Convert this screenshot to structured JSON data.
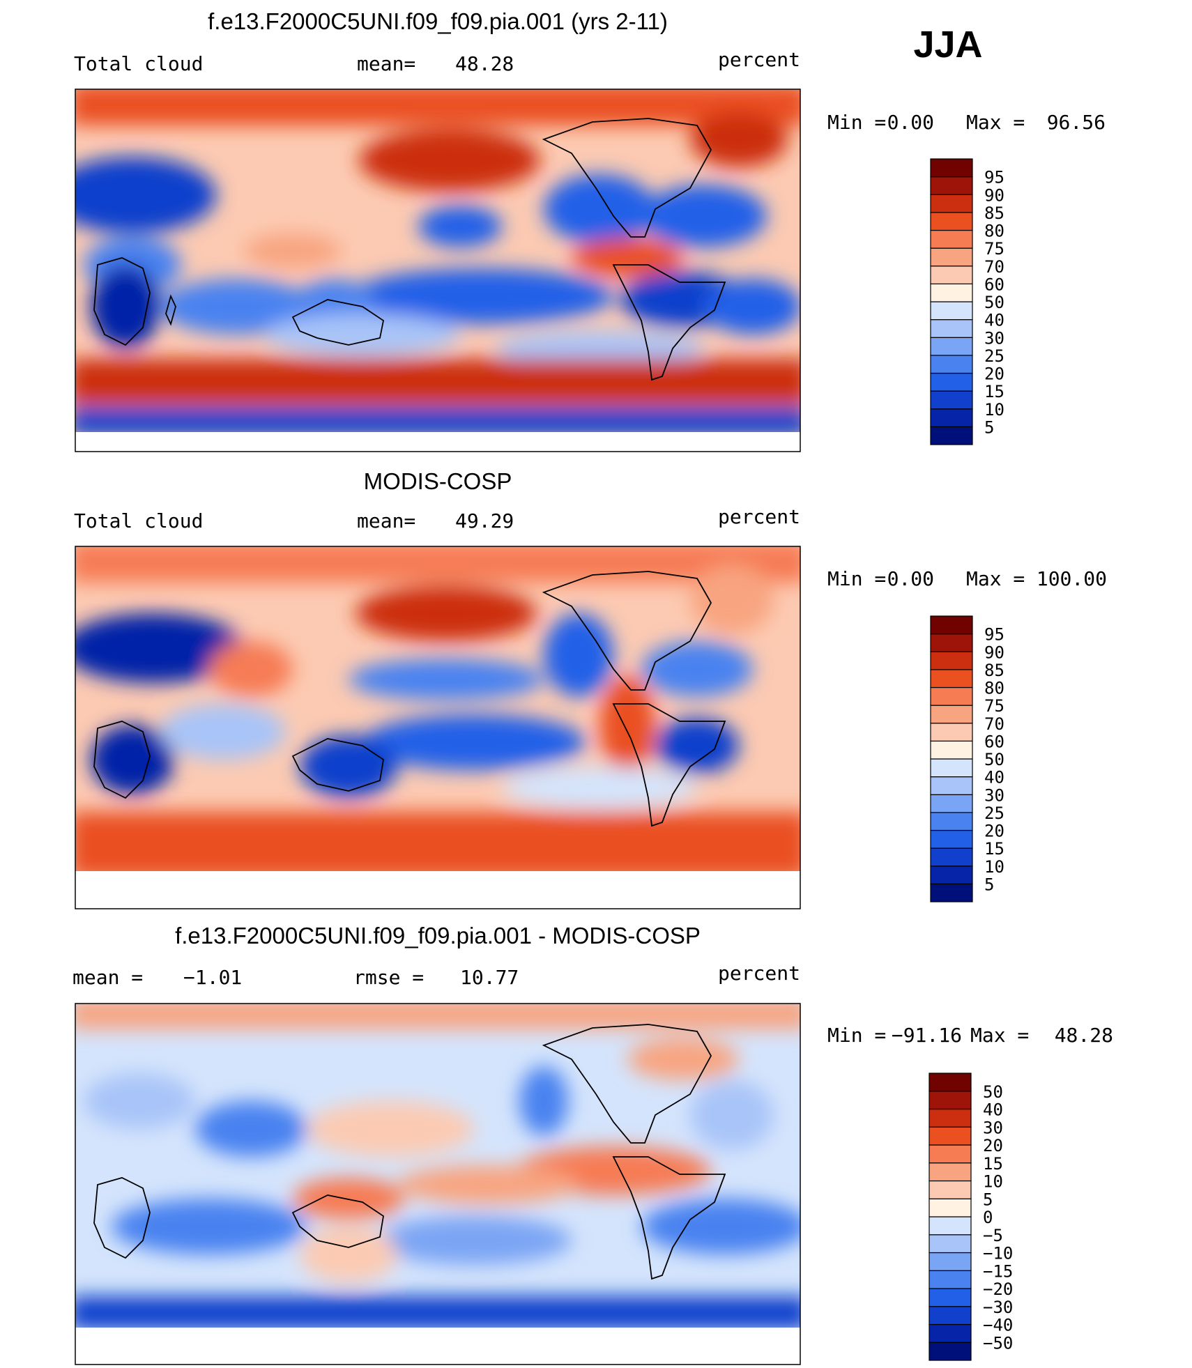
{
  "season": "JJA",
  "panels": [
    {
      "title": "f.e13.F2000C5UNI.f09_f09.pia.001 (yrs 2-11)",
      "left_label": "Total cloud",
      "center_label": "mean=",
      "center_value": "48.28",
      "units": "percent",
      "min_label": "Min =",
      "min_value": "0.00",
      "max_label": "Max =",
      "max_value": "96.56"
    },
    {
      "title": "MODIS-COSP",
      "left_label": "Total cloud",
      "center_label": "mean=",
      "center_value": "49.29",
      "units": "percent",
      "min_label": "Min =",
      "min_value": "0.00",
      "max_label": "Max =",
      "max_value": "100.00"
    },
    {
      "title": "f.e13.F2000C5UNI.f09_f09.pia.001 - MODIS-COSP",
      "left_label": "mean =",
      "left_value": "−1.01",
      "center_label": "rmse =",
      "center_value": "10.77",
      "units": "percent",
      "min_label": "Min =",
      "min_value": "−91.16",
      "max_label": "Max =",
      "max_value": "48.28"
    }
  ],
  "chart_data": [
    {
      "type": "heatmap",
      "title": "f.e13.F2000C5UNI.f09_f09.pia.001 (yrs 2-11)",
      "variable": "Total cloud",
      "units": "percent",
      "mean": 48.28,
      "min": 0.0,
      "max": 96.56,
      "colorbar": {
        "levels": [
          5,
          10,
          15,
          20,
          25,
          30,
          40,
          50,
          60,
          70,
          75,
          80,
          85,
          90,
          95
        ],
        "colors": [
          "#00107a",
          "#0624a8",
          "#1040cc",
          "#2260e8",
          "#4a82f0",
          "#7aa4f4",
          "#a8c4f8",
          "#d4e4fc",
          "#fff2e2",
          "#fccab2",
          "#f8a480",
          "#f67c54",
          "#ea5020",
          "#cc2e10",
          "#9e1408",
          "#700200"
        ]
      },
      "lon_range": [
        0,
        360
      ],
      "lat_range": [
        -90,
        90
      ]
    },
    {
      "type": "heatmap",
      "title": "MODIS-COSP",
      "variable": "Total cloud",
      "units": "percent",
      "mean": 49.29,
      "min": 0.0,
      "max": 100.0,
      "colorbar": {
        "levels": [
          5,
          10,
          15,
          20,
          25,
          30,
          40,
          50,
          60,
          70,
          75,
          80,
          85,
          90,
          95
        ],
        "colors": [
          "#00107a",
          "#0624a8",
          "#1040cc",
          "#2260e8",
          "#4a82f0",
          "#7aa4f4",
          "#a8c4f8",
          "#d4e4fc",
          "#fff2e2",
          "#fccab2",
          "#f8a480",
          "#f67c54",
          "#ea5020",
          "#cc2e10",
          "#9e1408",
          "#700200"
        ]
      },
      "lon_range": [
        0,
        360
      ],
      "lat_range": [
        -90,
        90
      ]
    },
    {
      "type": "heatmap",
      "title": "f.e13.F2000C5UNI.f09_f09.pia.001 - MODIS-COSP",
      "units": "percent",
      "mean": -1.01,
      "rmse": 10.77,
      "min": -91.16,
      "max": 48.28,
      "colorbar": {
        "levels": [
          -50,
          -40,
          -30,
          -20,
          -15,
          -10,
          -5,
          0,
          5,
          10,
          15,
          20,
          30,
          40,
          50
        ],
        "colors": [
          "#00107a",
          "#0624a8",
          "#1040cc",
          "#2260e8",
          "#4a82f0",
          "#7aa4f4",
          "#a8c4f8",
          "#d4e4fc",
          "#fff2e2",
          "#fccab2",
          "#f8a480",
          "#f67c54",
          "#ea5020",
          "#cc2e10",
          "#9e1408",
          "#700200"
        ]
      },
      "lon_range": [
        0,
        360
      ],
      "lat_range": [
        -90,
        90
      ]
    }
  ]
}
